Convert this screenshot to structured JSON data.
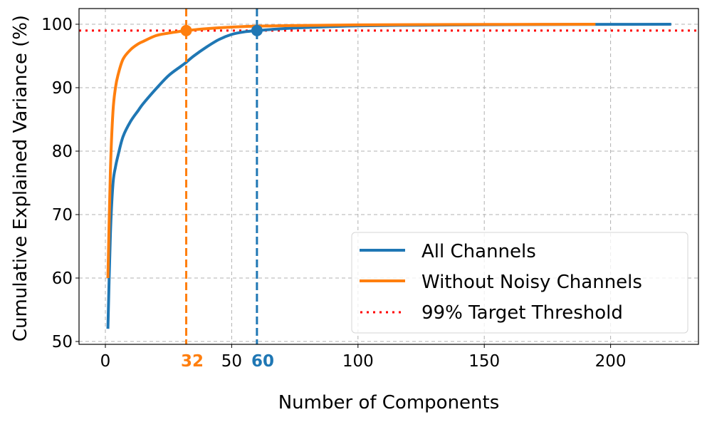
{
  "chart_data": {
    "type": "line",
    "title": "",
    "xlabel": "Number of Components",
    "ylabel": "Cumulative Explained Variance (%)",
    "xlim": [
      -10,
      235
    ],
    "ylim": [
      49.5,
      102.4
    ],
    "grid": true,
    "legend_position": "lower right",
    "x_ticks": [
      0,
      50,
      100,
      150,
      200
    ],
    "y_ticks": [
      50,
      60,
      70,
      80,
      90,
      100
    ],
    "series": [
      {
        "name": "All Channels",
        "color": "#1f77b4",
        "x": [
          1,
          2,
          3,
          4,
          5,
          7,
          10,
          13,
          15,
          20,
          25,
          30,
          32,
          35,
          40,
          45,
          50,
          55,
          60,
          70,
          80,
          100,
          125,
          150,
          175,
          200,
          224
        ],
        "y": [
          52.0,
          67.0,
          74.8,
          77.5,
          79.3,
          82.3,
          84.7,
          86.4,
          87.5,
          89.8,
          91.9,
          93.4,
          94.0,
          95.0,
          96.4,
          97.6,
          98.4,
          98.8,
          99.0,
          99.3,
          99.5,
          99.75,
          99.85,
          99.92,
          99.96,
          99.98,
          100.0
        ]
      },
      {
        "name": "Without Noisy Channels",
        "color": "#ff7f0e",
        "x": [
          1,
          2,
          3,
          4,
          5,
          7,
          10,
          13,
          15,
          20,
          25,
          30,
          32,
          40,
          50,
          60,
          80,
          100,
          125,
          150,
          175,
          194
        ],
        "y": [
          60.0,
          77.0,
          86.2,
          90.0,
          92.0,
          94.5,
          96.0,
          96.9,
          97.3,
          98.2,
          98.6,
          98.9,
          99.0,
          99.3,
          99.55,
          99.7,
          99.82,
          99.9,
          99.94,
          99.97,
          99.99,
          100.0
        ]
      },
      {
        "name": "99% Target Threshold",
        "color": "#ff0000",
        "style": "dotted",
        "y_constant": 99
      }
    ],
    "annotations": [
      {
        "type": "vline",
        "x": 32,
        "color": "#ff7f0e",
        "style": "dashed",
        "label": "32",
        "marker_y": 99
      },
      {
        "type": "vline",
        "x": 60,
        "color": "#1f77b4",
        "style": "dashed",
        "label": "60",
        "marker_y": 99
      }
    ]
  },
  "axis": {
    "x_tick_labels": [
      "0",
      "50",
      "100",
      "150",
      "200"
    ],
    "y_tick_labels": [
      "50",
      "60",
      "70",
      "80",
      "90",
      "100"
    ]
  },
  "legend": {
    "items": [
      {
        "label": "All Channels"
      },
      {
        "label": "Without Noisy Channels"
      },
      {
        "label": "99% Target Threshold"
      }
    ]
  },
  "highlights": {
    "orange_label": "32",
    "blue_label": "60"
  }
}
